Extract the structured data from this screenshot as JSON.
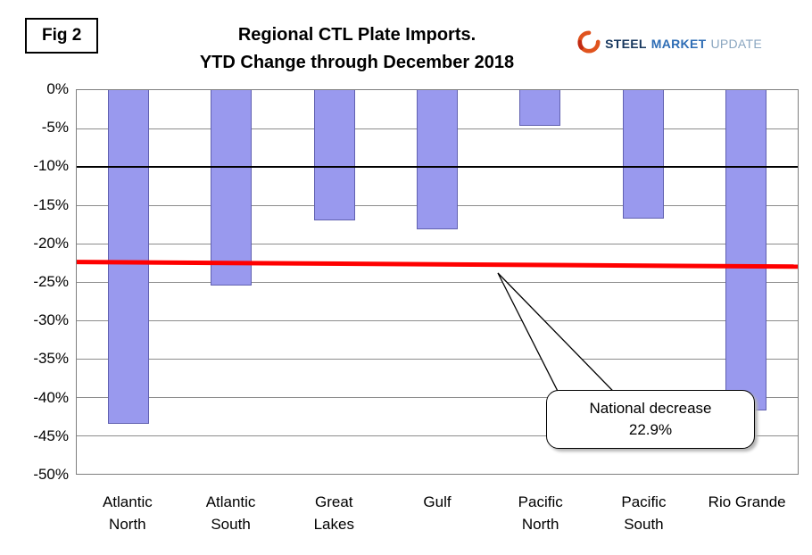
{
  "header": {
    "fig_label": "Fig 2",
    "title_line1": "Regional CTL Plate Imports.",
    "title_line2": "YTD Change through December 2018",
    "logo": {
      "part1": "STEEL",
      "part2": "MARKET",
      "part3": "UPDATE"
    }
  },
  "callout": {
    "line1": "National decrease",
    "line2": "22.9%"
  },
  "chart_data": {
    "type": "bar",
    "title": "Regional CTL Plate Imports. YTD Change through December 2018",
    "categories": [
      "Atlantic North",
      "Atlantic South",
      "Great Lakes",
      "Gulf",
      "Pacific North",
      "Pacific South",
      "Rio Grande"
    ],
    "tick_labels": [
      "Atlantic\nNorth",
      "Atlantic\nSouth",
      "Great\nLakes",
      "Gulf",
      "Pacific\nNorth",
      "Pacific\nSouth",
      "Rio Grande"
    ],
    "values": [
      -43.5,
      -25.5,
      -17.0,
      -18.1,
      -4.7,
      -16.8,
      -41.8
    ],
    "ylim": [
      -50,
      0
    ],
    "yticks": [
      0,
      -5,
      -10,
      -15,
      -20,
      -25,
      -30,
      -35,
      -40,
      -45,
      -50
    ],
    "ytick_suffix": "%",
    "grid": true,
    "legend": "none",
    "bar_color": "#9999ee",
    "bar_border_color": "#6161b0",
    "reference_lines": [
      {
        "name": "minus-10-percent-line",
        "value": -10,
        "color": "#000000",
        "thickness": 2
      },
      {
        "name": "national-decrease-line",
        "value": -22.9,
        "value_start": -22.4,
        "value_end": -23.0,
        "color": "#ff0000",
        "thickness": 5,
        "label": "National decrease 22.9%"
      }
    ]
  }
}
